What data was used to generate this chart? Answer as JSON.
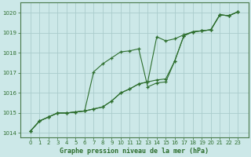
{
  "title": "Graphe pression niveau de la mer (hPa)",
  "bg_color": "#cce8e8",
  "grid_color": "#aacccc",
  "line_color": "#2d6e2d",
  "x_values": [
    0,
    1,
    2,
    3,
    4,
    5,
    6,
    7,
    8,
    9,
    10,
    11,
    12,
    13,
    14,
    15,
    16,
    17,
    18,
    19,
    20,
    21,
    22,
    23
  ],
  "line1": [
    1014.1,
    1014.6,
    1014.8,
    1015.0,
    1015.0,
    1015.05,
    1015.1,
    1015.2,
    1015.3,
    1015.6,
    1016.0,
    1016.2,
    1016.45,
    1016.55,
    1016.65,
    1016.7,
    1017.6,
    1018.85,
    1019.05,
    1019.1,
    1019.15,
    1019.9,
    1019.85,
    1020.05
  ],
  "line2": [
    1014.1,
    1014.6,
    1014.8,
    1015.0,
    1015.0,
    1015.05,
    1015.1,
    1017.05,
    1017.45,
    1017.75,
    1018.05,
    1018.1,
    1018.2,
    1016.3,
    1016.5,
    1016.55,
    1017.6,
    1018.85,
    1019.05,
    1019.1,
    1019.15,
    1019.9,
    1019.85,
    1020.05
  ],
  "line3": [
    1014.1,
    1014.6,
    1014.8,
    1015.0,
    1015.0,
    1015.05,
    1015.1,
    1015.2,
    1015.3,
    1015.6,
    1016.0,
    1016.2,
    1016.45,
    1016.55,
    1018.8,
    1018.6,
    1018.7,
    1018.9,
    1019.05,
    1019.1,
    1019.15,
    1019.9,
    1019.85,
    1020.05
  ],
  "ylim": [
    1013.8,
    1020.5
  ],
  "yticks": [
    1014,
    1015,
    1016,
    1017,
    1018,
    1019,
    1020
  ],
  "xticks": [
    0,
    1,
    2,
    3,
    4,
    5,
    6,
    7,
    8,
    9,
    10,
    11,
    12,
    13,
    14,
    15,
    16,
    17,
    18,
    19,
    20,
    21,
    22,
    23
  ]
}
